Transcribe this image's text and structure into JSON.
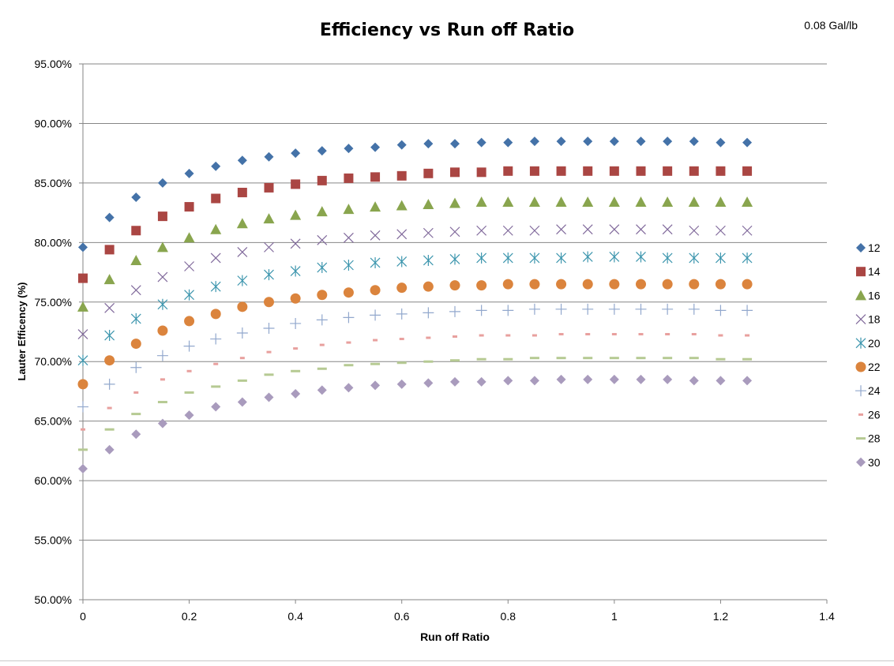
{
  "chart_data": {
    "type": "scatter",
    "title": "Efficiency vs Run off Ratio",
    "annotation": "0.08 Gal/lb",
    "xlabel": "Run off Ratio",
    "ylabel": "Lauter Efficency (%)",
    "xlim": [
      0,
      1.4
    ],
    "ylim": [
      50,
      95
    ],
    "x_ticks": [
      "0",
      "0.2",
      "0.4",
      "0.6",
      "0.8",
      "1",
      "1.2",
      "1.4"
    ],
    "y_ticks": [
      "50.00%",
      "55.00%",
      "60.00%",
      "65.00%",
      "70.00%",
      "75.00%",
      "80.00%",
      "85.00%",
      "90.00%",
      "95.00%"
    ],
    "grid": "horizontal",
    "legend_position": "right",
    "x": [
      0,
      0.05,
      0.1,
      0.15,
      0.2,
      0.25,
      0.3,
      0.35,
      0.4,
      0.45,
      0.5,
      0.55,
      0.6,
      0.65,
      0.7,
      0.75,
      0.8,
      0.85,
      0.9,
      0.95,
      1.0,
      1.05,
      1.1,
      1.15,
      1.2,
      1.25
    ],
    "series": [
      {
        "name": "12",
        "color": "#4472a8",
        "marker": "diamond",
        "values": [
          79.6,
          82.1,
          83.8,
          85.0,
          85.8,
          86.4,
          86.9,
          87.2,
          87.5,
          87.7,
          87.9,
          88.0,
          88.2,
          88.3,
          88.3,
          88.4,
          88.4,
          88.5,
          88.5,
          88.5,
          88.5,
          88.5,
          88.5,
          88.5,
          88.4,
          88.4
        ]
      },
      {
        "name": "14",
        "color": "#aa4643",
        "marker": "square",
        "values": [
          77.0,
          79.4,
          81.0,
          82.2,
          83.0,
          83.7,
          84.2,
          84.6,
          84.9,
          85.2,
          85.4,
          85.5,
          85.6,
          85.8,
          85.9,
          85.9,
          86.0,
          86.0,
          86.0,
          86.0,
          86.0,
          86.0,
          86.0,
          86.0,
          86.0,
          86.0
        ]
      },
      {
        "name": "16",
        "color": "#89a54e",
        "marker": "triangle",
        "values": [
          74.6,
          76.9,
          78.5,
          79.6,
          80.4,
          81.1,
          81.6,
          82.0,
          82.3,
          82.6,
          82.8,
          83.0,
          83.1,
          83.2,
          83.3,
          83.4,
          83.4,
          83.4,
          83.4,
          83.4,
          83.4,
          83.4,
          83.4,
          83.4,
          83.4,
          83.4
        ]
      },
      {
        "name": "18",
        "color": "#80699b",
        "marker": "x",
        "values": [
          72.3,
          74.5,
          76.0,
          77.1,
          78.0,
          78.7,
          79.2,
          79.6,
          79.9,
          80.2,
          80.4,
          80.6,
          80.7,
          80.8,
          80.9,
          81.0,
          81.0,
          81.0,
          81.1,
          81.1,
          81.1,
          81.1,
          81.1,
          81.0,
          81.0,
          81.0
        ]
      },
      {
        "name": "20",
        "color": "#3d96ae",
        "marker": "asterisk",
        "values": [
          70.1,
          72.2,
          73.6,
          74.8,
          75.6,
          76.3,
          76.8,
          77.3,
          77.6,
          77.9,
          78.1,
          78.3,
          78.4,
          78.5,
          78.6,
          78.7,
          78.7,
          78.7,
          78.7,
          78.8,
          78.8,
          78.8,
          78.7,
          78.7,
          78.7,
          78.7
        ]
      },
      {
        "name": "22",
        "color": "#db843d",
        "marker": "circle",
        "values": [
          68.1,
          70.1,
          71.5,
          72.6,
          73.4,
          74.0,
          74.6,
          75.0,
          75.3,
          75.6,
          75.8,
          76.0,
          76.2,
          76.3,
          76.4,
          76.4,
          76.5,
          76.5,
          76.5,
          76.5,
          76.5,
          76.5,
          76.5,
          76.5,
          76.5,
          76.5
        ]
      },
      {
        "name": "24",
        "color": "#92a8cd",
        "marker": "plus",
        "values": [
          66.2,
          68.1,
          69.5,
          70.5,
          71.3,
          71.9,
          72.4,
          72.8,
          73.2,
          73.5,
          73.7,
          73.9,
          74.0,
          74.1,
          74.2,
          74.3,
          74.3,
          74.4,
          74.4,
          74.4,
          74.4,
          74.4,
          74.4,
          74.4,
          74.3,
          74.3
        ]
      },
      {
        "name": "26",
        "color": "#e8a09e",
        "marker": "dash",
        "values": [
          64.3,
          66.1,
          67.4,
          68.5,
          69.2,
          69.8,
          70.3,
          70.8,
          71.1,
          71.4,
          71.6,
          71.8,
          71.9,
          72.0,
          72.1,
          72.2,
          72.2,
          72.2,
          72.3,
          72.3,
          72.3,
          72.3,
          72.3,
          72.3,
          72.2,
          72.2
        ]
      },
      {
        "name": "28",
        "color": "#b6ca93",
        "marker": "longdash",
        "values": [
          62.6,
          64.3,
          65.6,
          66.6,
          67.4,
          67.9,
          68.4,
          68.9,
          69.2,
          69.4,
          69.7,
          69.8,
          69.9,
          70.0,
          70.1,
          70.2,
          70.2,
          70.3,
          70.3,
          70.3,
          70.3,
          70.3,
          70.3,
          70.3,
          70.2,
          70.2
        ]
      },
      {
        "name": "30",
        "color": "#a99bbd",
        "marker": "diamond",
        "values": [
          61.0,
          62.6,
          63.9,
          64.8,
          65.5,
          66.2,
          66.6,
          67.0,
          67.3,
          67.6,
          67.8,
          68.0,
          68.1,
          68.2,
          68.3,
          68.3,
          68.4,
          68.4,
          68.5,
          68.5,
          68.5,
          68.5,
          68.5,
          68.4,
          68.4,
          68.4
        ]
      }
    ]
  }
}
